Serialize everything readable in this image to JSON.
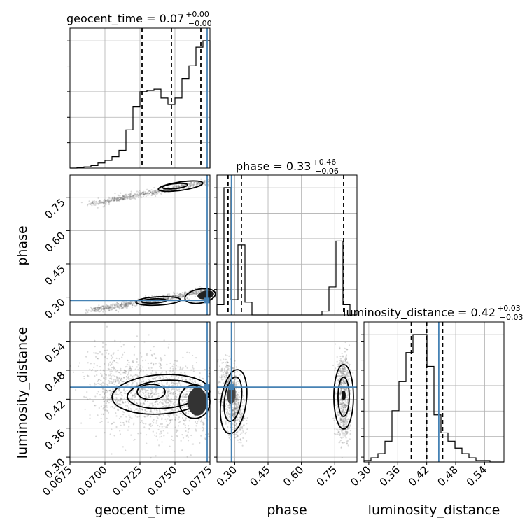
{
  "colors": {
    "truth": "#4682b4",
    "line": "#000000",
    "grid": "#b0b0b0"
  },
  "chart_data": {
    "type": "corner",
    "parameters": [
      "geocent_time",
      "phase",
      "luminosity_distance"
    ],
    "axis_labels": [
      "geocent_time",
      "phase",
      "luminosity_distance"
    ],
    "ranges": [
      [
        0.0675,
        0.0775
      ],
      [
        0.22,
        0.85
      ],
      [
        0.29,
        0.58
      ]
    ],
    "ticks": [
      [
        "0.0675",
        "0.0700",
        "0.0725",
        "0.0750",
        "0.0775"
      ],
      [
        "0.30",
        "0.45",
        "0.60",
        "0.75"
      ],
      [
        "0.30",
        "0.36",
        "0.42",
        "0.48",
        "0.54"
      ]
    ],
    "tick_values": [
      [
        0.0675,
        0.07,
        0.0725,
        0.075,
        0.0775
      ],
      [
        0.3,
        0.45,
        0.6,
        0.75
      ],
      [
        0.3,
        0.36,
        0.42,
        0.48,
        0.54
      ]
    ],
    "titles": [
      {
        "main": "geocent_time = 0.07",
        "plus": "+0.00",
        "minus": "−0.00"
      },
      {
        "main": "phase = 0.33",
        "plus": "+0.46",
        "minus": "−0.06"
      },
      {
        "main": "luminosity_distance = 0.42",
        "plus": "+0.03",
        "minus": "−0.03"
      }
    ],
    "truths": [
      0.0773,
      0.285,
      0.445
    ],
    "quantiles": [
      [
        0.07265,
        0.07475,
        0.07685
      ],
      [
        0.27,
        0.33,
        0.79
      ],
      [
        0.388,
        0.42,
        0.453
      ]
    ],
    "histograms": [
      {
        "edges_start": 0.0675,
        "bin_width": 0.0005,
        "counts": [
          0,
          0.5,
          1,
          2,
          4,
          6,
          9,
          14,
          30,
          48,
          60,
          61,
          62,
          55,
          50,
          55,
          70,
          80,
          95,
          100
        ]
      },
      {
        "edges_start": 0.22,
        "bin_width": 0.0315,
        "counts": [
          8,
          100,
          12,
          55,
          10,
          0,
          0,
          0,
          0,
          0,
          0,
          0,
          0,
          0,
          0,
          3,
          22,
          58,
          8,
          0
        ]
      },
      {
        "edges_start": 0.29,
        "bin_width": 0.0145,
        "counts": [
          1,
          3,
          6,
          15,
          37,
          58,
          79,
          92,
          92,
          69,
          34,
          21,
          15,
          10,
          6,
          3,
          1,
          1,
          0,
          0
        ]
      }
    ],
    "grid": true
  }
}
